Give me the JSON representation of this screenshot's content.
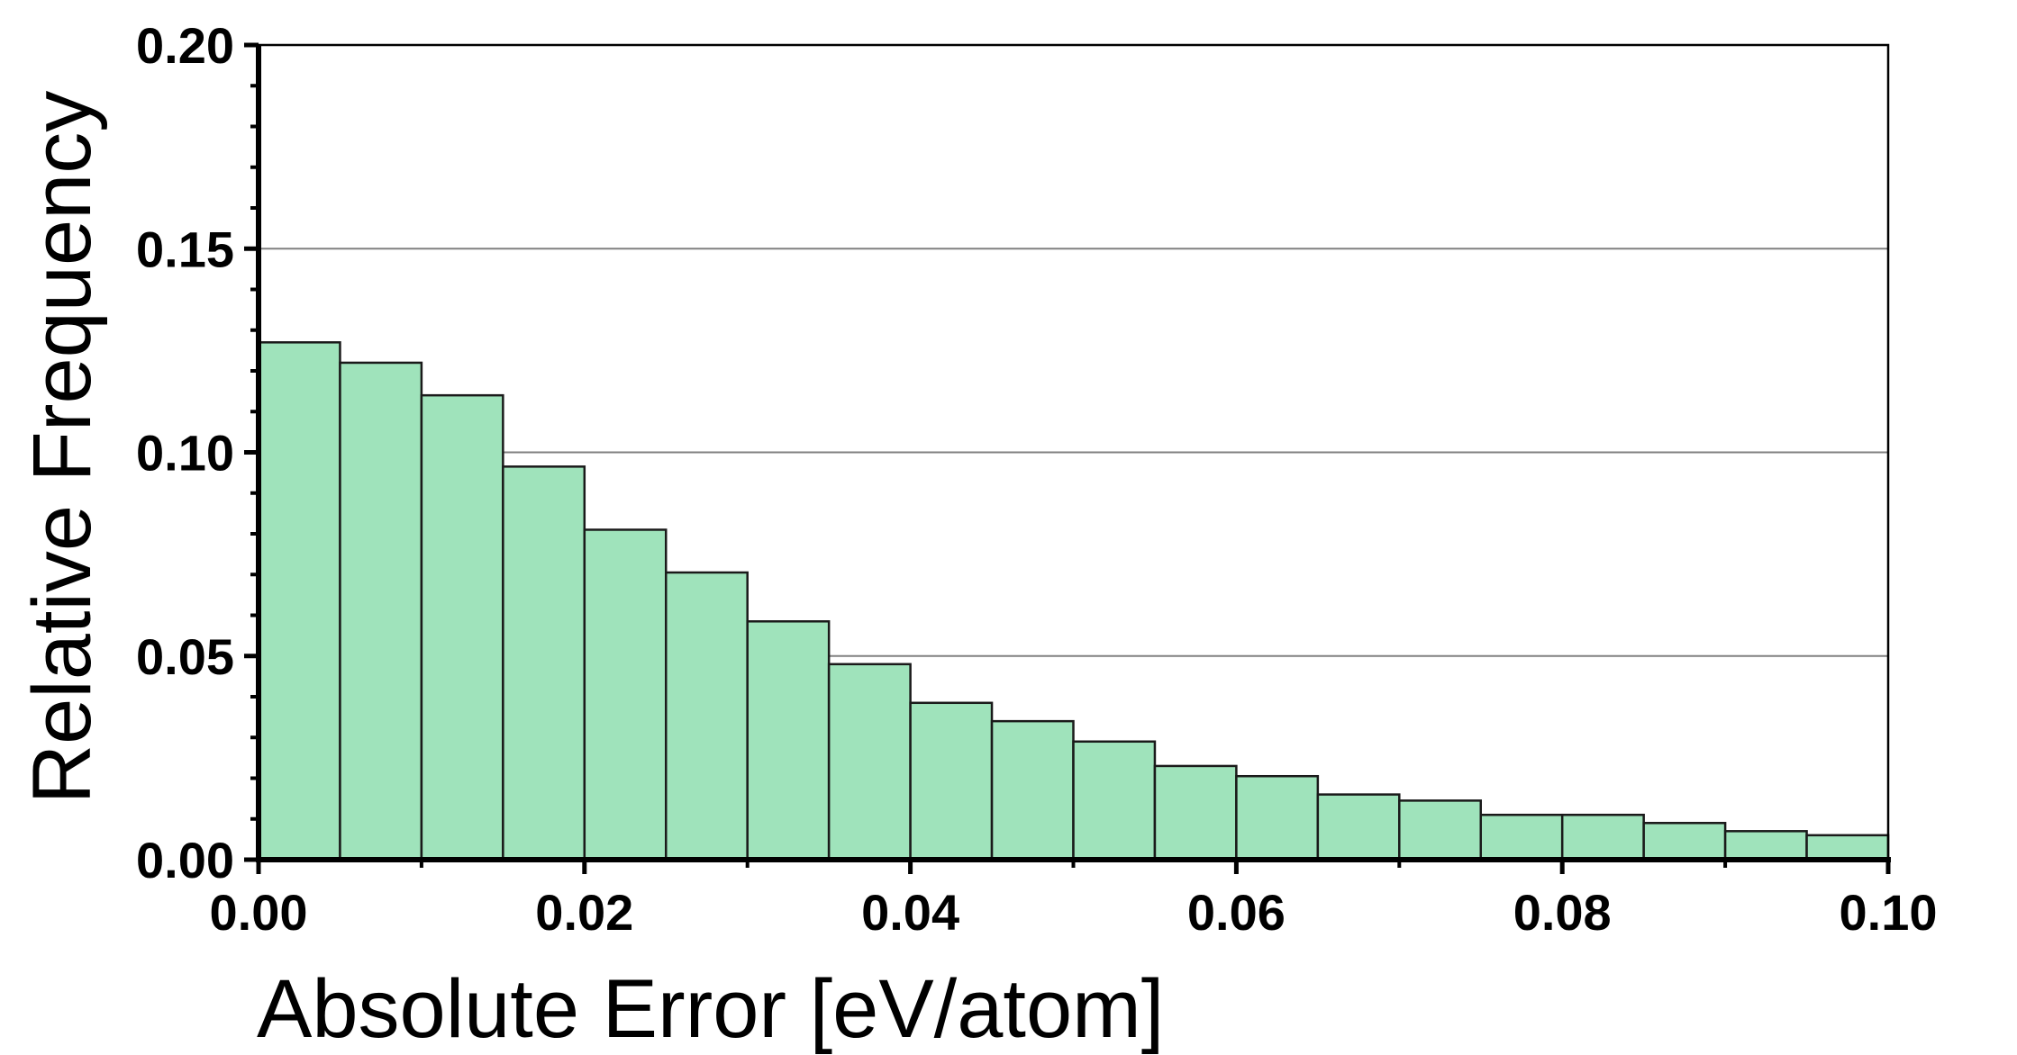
{
  "chart_data": {
    "type": "bar",
    "subtype": "histogram",
    "xlabel": "Absolute Error [eV/atom]",
    "ylabel": "Relative Frequency",
    "xlim": [
      0.0,
      0.1
    ],
    "ylim": [
      0.0,
      0.2
    ],
    "bin_width": 0.005,
    "bin_starts": [
      0.0,
      0.005,
      0.01,
      0.015,
      0.02,
      0.025,
      0.03,
      0.035,
      0.04,
      0.045,
      0.05,
      0.055,
      0.06,
      0.065,
      0.07,
      0.075,
      0.08,
      0.085,
      0.09,
      0.095
    ],
    "values": [
      0.127,
      0.122,
      0.114,
      0.0965,
      0.081,
      0.0705,
      0.0585,
      0.048,
      0.0385,
      0.034,
      0.029,
      0.023,
      0.0205,
      0.016,
      0.0145,
      0.011,
      0.011,
      0.009,
      0.007,
      0.006
    ],
    "x_ticks": [
      0.0,
      0.02,
      0.04,
      0.06,
      0.08,
      0.1
    ],
    "x_tick_labels": [
      "0.00",
      "0.02",
      "0.04",
      "0.06",
      "0.08",
      "0.10"
    ],
    "y_ticks": [
      0.0,
      0.05,
      0.1,
      0.15,
      0.2
    ],
    "y_tick_labels": [
      "0.00",
      "0.05",
      "0.10",
      "0.15",
      "0.20"
    ],
    "y_minor_step": 0.01,
    "x_minor_step": 0.01,
    "grid": "horizontal",
    "bar_color": "#9fe3bb",
    "edge_color": "#1a1a1a",
    "grid_color": "#808080",
    "axis_color": "#000000"
  }
}
